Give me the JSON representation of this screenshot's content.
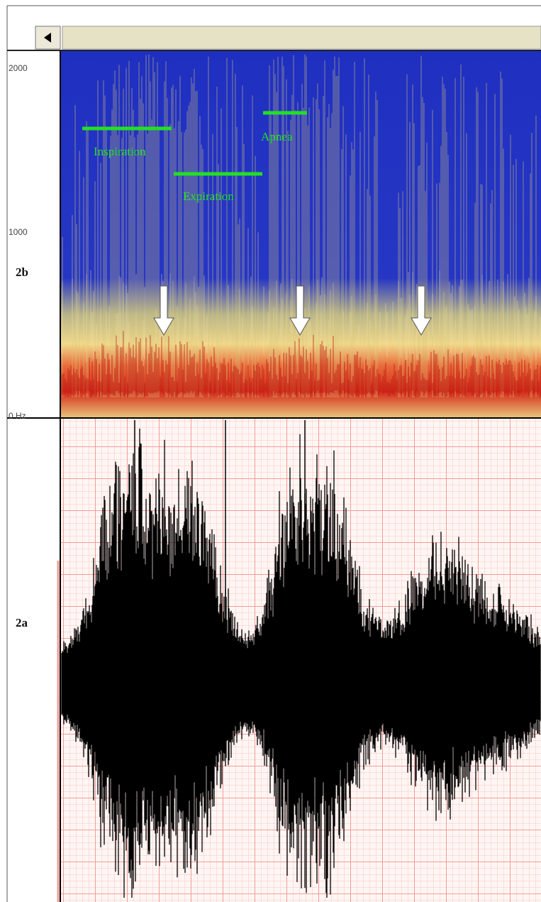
{
  "spectrogram": {
    "panel_label": "2b",
    "axis_labels": [
      "2000",
      "1000",
      "0 Hz"
    ],
    "annotations": [
      "Inspiration",
      "Expiration",
      "Apnea"
    ]
  },
  "waveform": {
    "panel_label": "2a"
  }
}
